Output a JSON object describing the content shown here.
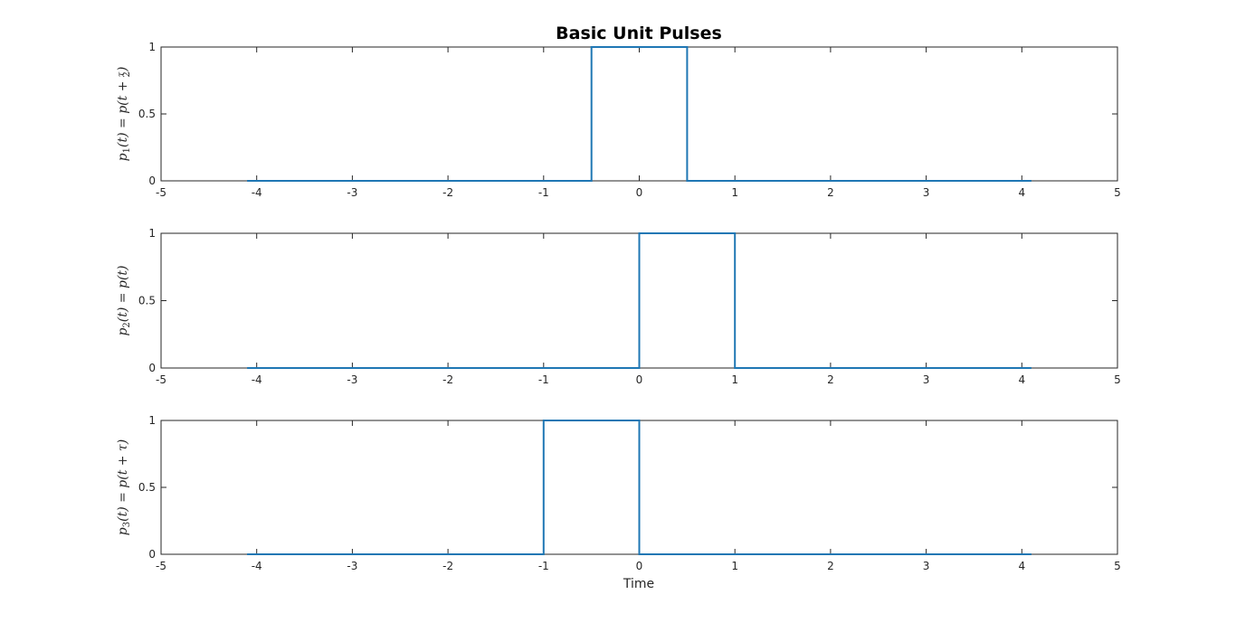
{
  "title": "Basic Unit Pulses",
  "xlabel": "Time",
  "colors": {
    "line": "#1f77b4",
    "axes": "#262626"
  },
  "chart_data": [
    {
      "type": "line",
      "ylabel": "p1(t) = p(t + τ/2)",
      "xlim": [
        -5,
        5
      ],
      "ylim": [
        0,
        1
      ],
      "xticks": [
        "-5",
        "-4",
        "-3",
        "-2",
        "-1",
        "0",
        "1",
        "2",
        "3",
        "4",
        "5"
      ],
      "yticks": [
        "0",
        "0.5",
        "1"
      ],
      "x": [
        -4.1,
        -0.5,
        -0.5,
        0.5,
        0.5,
        4.1
      ],
      "y": [
        0,
        0,
        1,
        1,
        0,
        0
      ]
    },
    {
      "type": "line",
      "ylabel": "p2(t) = p(t)",
      "xlim": [
        -5,
        5
      ],
      "ylim": [
        0,
        1
      ],
      "xticks": [
        "-5",
        "-4",
        "-3",
        "-2",
        "-1",
        "0",
        "1",
        "2",
        "3",
        "4",
        "5"
      ],
      "yticks": [
        "0",
        "0.5",
        "1"
      ],
      "x": [
        -4.1,
        0,
        0,
        1,
        1,
        4.1
      ],
      "y": [
        0,
        0,
        1,
        1,
        0,
        0
      ]
    },
    {
      "type": "line",
      "ylabel": "p3(t) = p(t + τ)",
      "xlim": [
        -5,
        5
      ],
      "ylim": [
        0,
        1
      ],
      "xticks": [
        "-5",
        "-4",
        "-3",
        "-2",
        "-1",
        "0",
        "1",
        "2",
        "3",
        "4",
        "5"
      ],
      "yticks": [
        "0",
        "0.5",
        "1"
      ],
      "x": [
        -4.1,
        -1,
        -1,
        0,
        0,
        4.1
      ],
      "y": [
        0,
        0,
        1,
        1,
        0,
        0
      ]
    }
  ]
}
